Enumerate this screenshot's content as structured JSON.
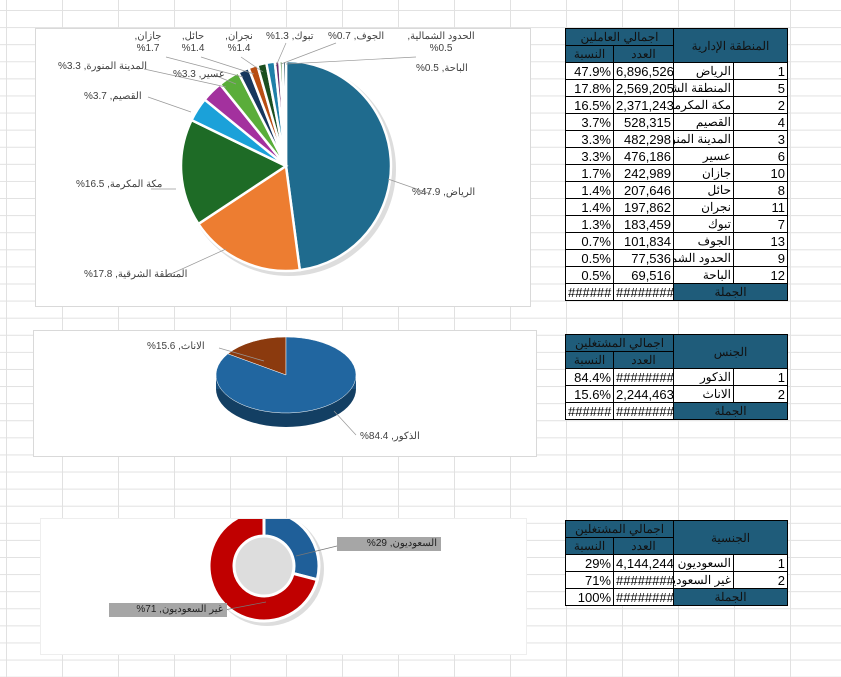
{
  "regions": {
    "header": "المنطقة الإدارية",
    "group": "اجمالي العاملين",
    "count": "العدد",
    "pct": "النسبة",
    "total_label": "الجملة",
    "total_count": "#########",
    "total_pct": "######",
    "rows": [
      {
        "no": "1",
        "name": "الرياض",
        "count": "6,896,526",
        "pct": "47.9%",
        "value": 47.9,
        "color": "#1f6b8e",
        "chart_label": "الرياض, 47.9%"
      },
      {
        "no": "5",
        "name": "المنطقة الشرقية",
        "count": "2,569,205",
        "pct": "17.8%",
        "value": 17.8,
        "color": "#ed7d31",
        "chart_label": "المنطقة الشرقية, 17.8%"
      },
      {
        "no": "2",
        "name": "مكة المكرمة",
        "count": "2,371,243",
        "pct": "16.5%",
        "value": 16.5,
        "color": "#1e6b26",
        "chart_label": "مكة المكرمة, 16.5%"
      },
      {
        "no": "4",
        "name": "القصيم",
        "count": "528,315",
        "pct": "3.7%",
        "value": 3.7,
        "color": "#1ba1d9",
        "chart_label": "القصيم, 3.7%"
      },
      {
        "no": "3",
        "name": "المدينة المنورة",
        "count": "482,298",
        "pct": "3.3%",
        "value": 3.3,
        "color": "#a3319e",
        "chart_label": "المدينة المنورة, 3.3%"
      },
      {
        "no": "6",
        "name": "عسير",
        "count": "476,186",
        "pct": "3.3%",
        "value": 3.3,
        "color": "#5aad3a",
        "chart_label": "عسير, 3.3%"
      },
      {
        "no": "10",
        "name": "جازان",
        "count": "242,989",
        "pct": "1.7%",
        "value": 1.7,
        "color": "#17375e",
        "chart_label": "جازان, 1.7%"
      },
      {
        "no": "8",
        "name": "حائل",
        "count": "207,646",
        "pct": "1.4%",
        "value": 1.4,
        "color": "#b84d12",
        "chart_label": "حائل, 1.4%"
      },
      {
        "no": "11",
        "name": "نجران",
        "count": "197,862",
        "pct": "1.4%",
        "value": 1.4,
        "color": "#1b4e1f",
        "chart_label": "نجران, 1.4%"
      },
      {
        "no": "7",
        "name": "تبوك",
        "count": "183,459",
        "pct": "1.3%",
        "value": 1.3,
        "color": "#1f7fa8",
        "chart_label": "تبوك, 1.3%"
      },
      {
        "no": "13",
        "name": "الجوف",
        "count": "101,834",
        "pct": "0.7%",
        "value": 0.7,
        "color": "#6b2a6a",
        "chart_label": "الجوف, 0.7%"
      },
      {
        "no": "9",
        "name": "الحدود الشمالية",
        "count": "77,536",
        "pct": "0.5%",
        "value": 0.5,
        "color": "#3a7d2a",
        "chart_label": "الحدود الشمالية, 0.5%"
      },
      {
        "no": "12",
        "name": "الباحة",
        "count": "69,516",
        "pct": "0.5%",
        "value": 0.5,
        "color": "#0f3d55",
        "chart_label": "الباحة, 0.5%"
      }
    ]
  },
  "gender": {
    "header": "الجنس",
    "group": "اجمالي المشتغلين",
    "count": "العدد",
    "pct": "النسبة",
    "total_label": "الجملة",
    "total_count": "#########",
    "total_pct": "######",
    "rows": [
      {
        "no": "1",
        "name": "الذكور",
        "count": "#########",
        "pct": "84.4%",
        "value": 84.4,
        "color": "#2166a0",
        "chart_label": "الذكور, 84.4%"
      },
      {
        "no": "2",
        "name": "الاناث",
        "count": "2,244,463",
        "pct": "15.6%",
        "value": 15.6,
        "color": "#8b3a0e",
        "chart_label": "الاناث, 15.6%"
      }
    ]
  },
  "nationality": {
    "header": "الجنسية",
    "group": "اجمالي المشتغلين",
    "count": "العدد",
    "pct": "النسبة",
    "total_label": "الجملة",
    "total_count": "#########",
    "total_pct": "100%",
    "rows": [
      {
        "no": "1",
        "name": "السعوديون",
        "count": "4,144,244",
        "pct": "29%",
        "value": 29,
        "color": "#1f5f99",
        "chart_label": "السعوديون, 29%"
      },
      {
        "no": "2",
        "name": "غير السعوديين",
        "count": "#########",
        "pct": "71%",
        "value": 71,
        "color": "#c00000",
        "chart_label": "غير السعوديون, 71%"
      }
    ]
  },
  "chart_data": [
    {
      "type": "pie",
      "source": "regions"
    },
    {
      "type": "pie",
      "source": "gender"
    },
    {
      "type": "pie",
      "variant": "donut",
      "source": "nationality"
    }
  ]
}
